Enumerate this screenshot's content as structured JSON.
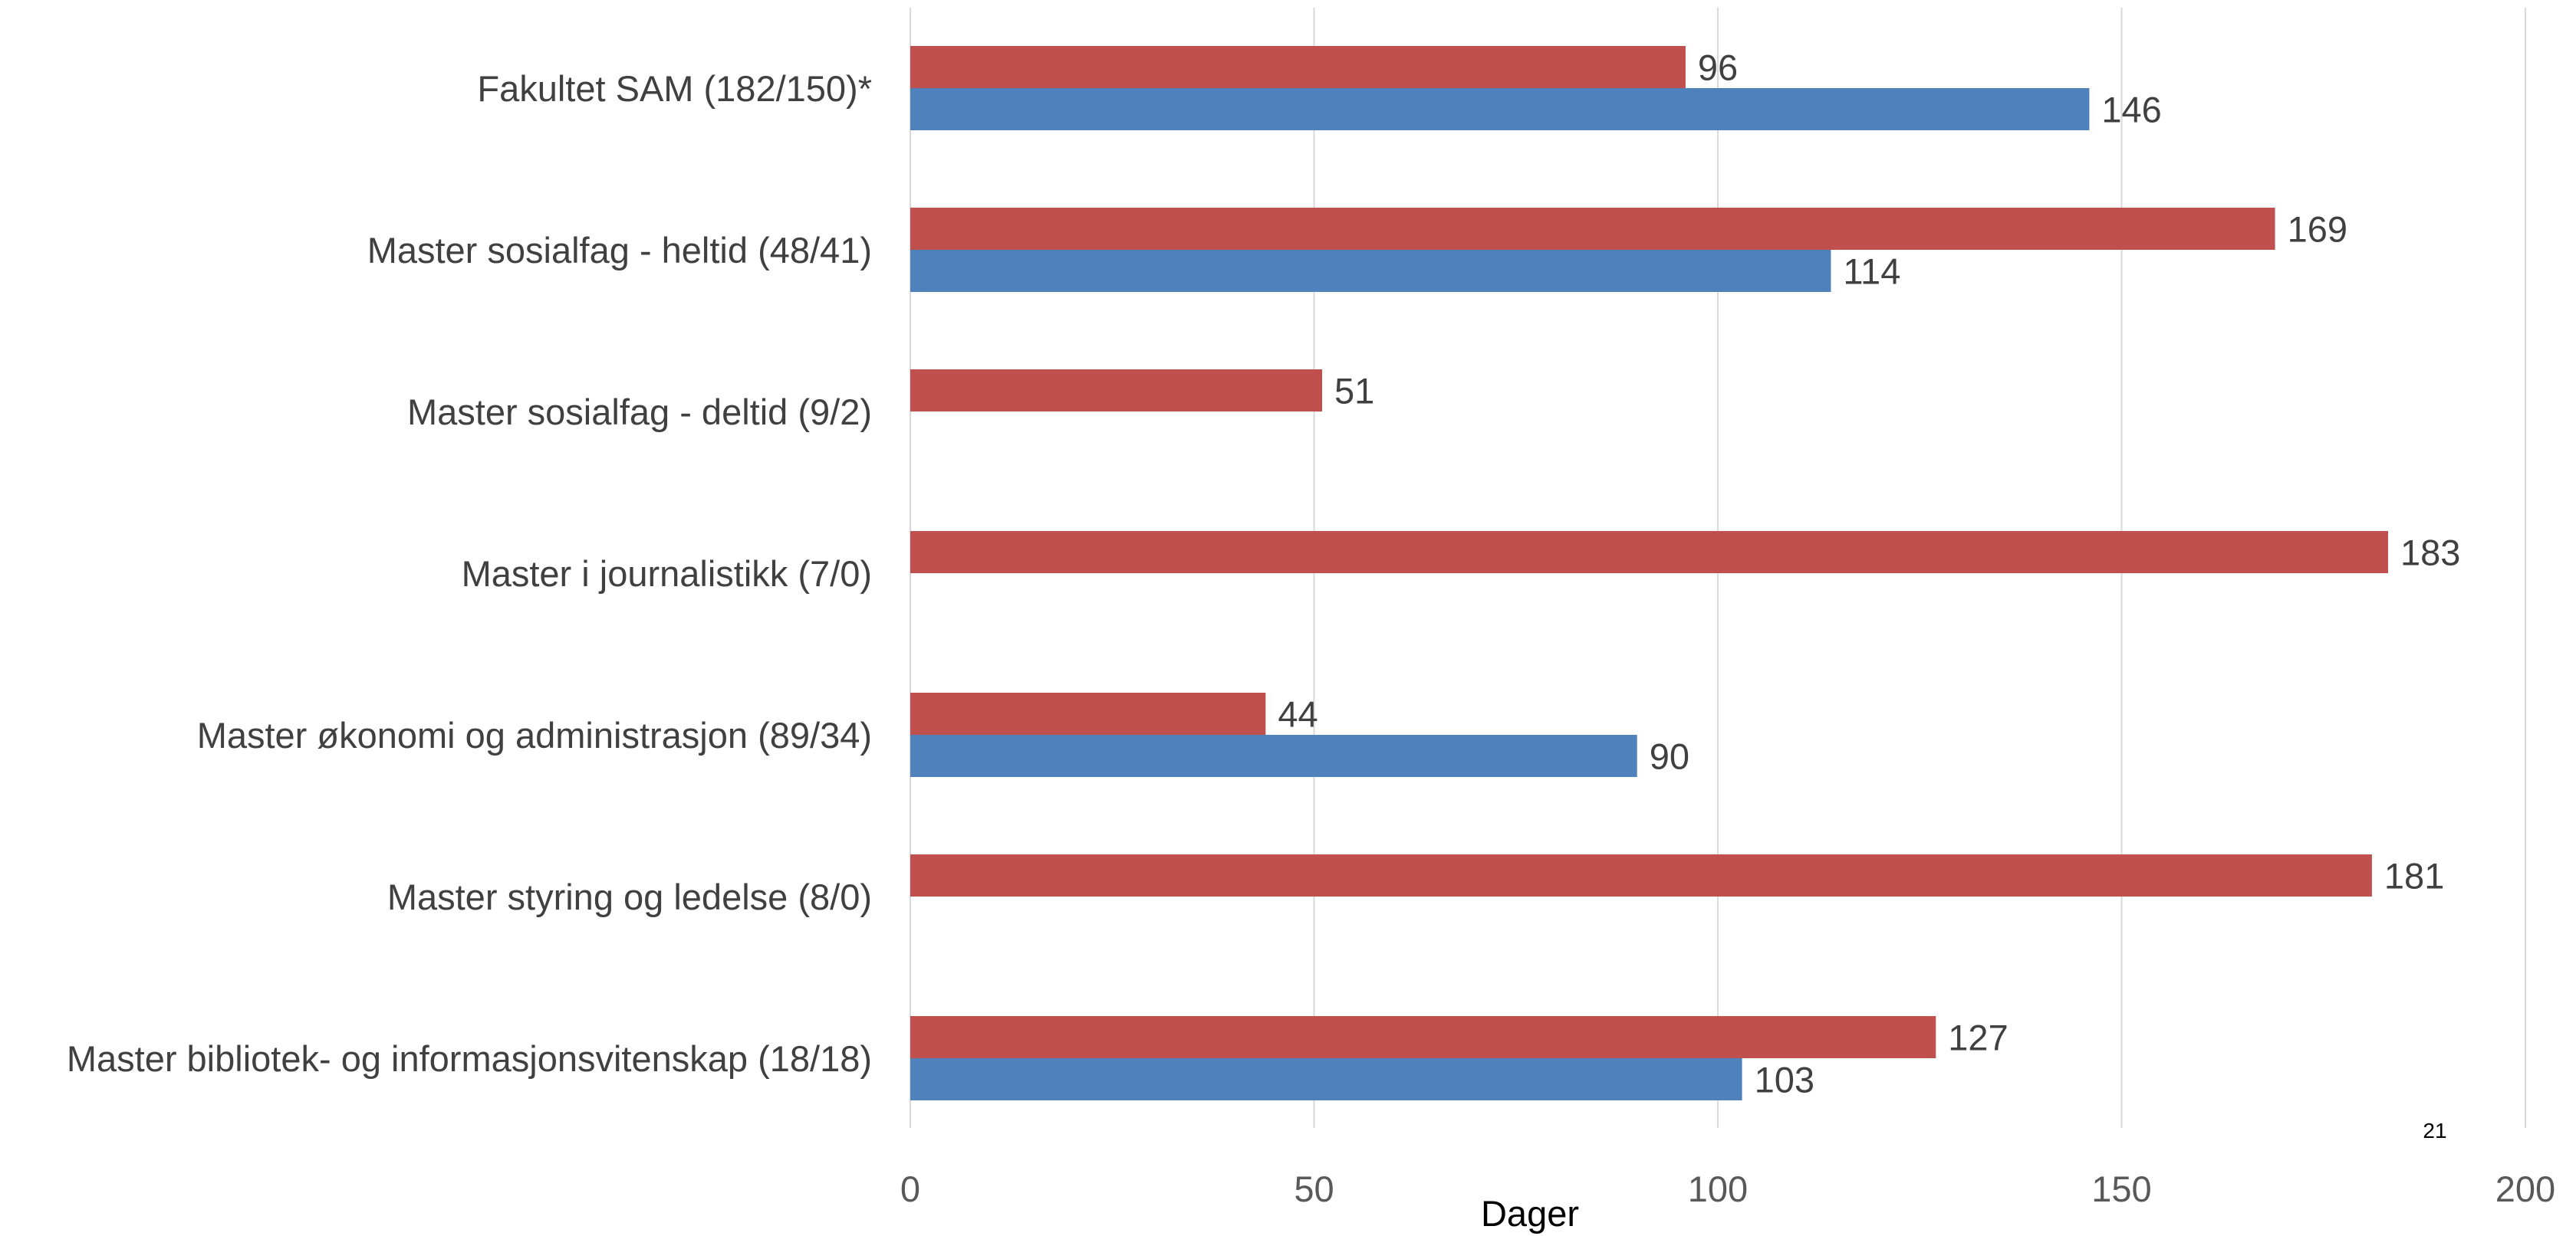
{
  "chart_data": {
    "type": "bar",
    "orientation": "horizontal",
    "categories": [
      "Fakultet SAM (182/150)*",
      "Master sosialfag - heltid (48/41)",
      "Master sosialfag - deltid (9/2)",
      "Master i journalistikk (7/0)",
      "Master økonomi og administrasjon (89/34)",
      "Master styring og ledelse (8/0)",
      "Master bibliotek- og informasjonsvitenskap (18/18)"
    ],
    "series": [
      {
        "color": "#c0504d",
        "values": [
          96,
          169,
          51,
          183,
          44,
          181,
          127
        ]
      },
      {
        "color": "#4f81bd",
        "values": [
          146,
          114,
          null,
          null,
          90,
          null,
          103
        ]
      }
    ],
    "xlabel": "Dager",
    "xlim": [
      0,
      200
    ],
    "xticks": [
      0,
      50,
      100,
      150,
      200
    ],
    "grid": true,
    "legend": "none"
  },
  "page_number": "21"
}
